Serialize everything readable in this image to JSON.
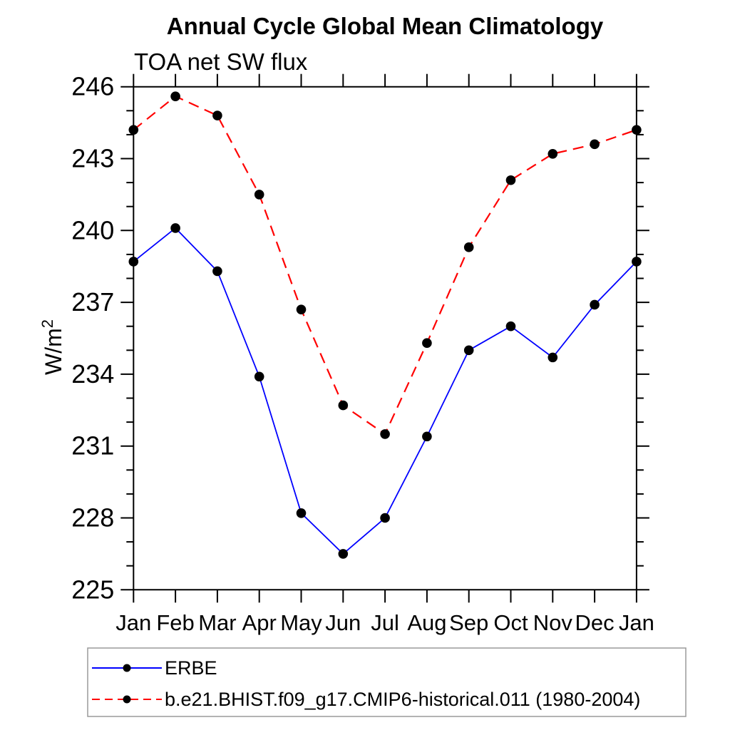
{
  "chart_data": {
    "type": "line",
    "title": "Annual Cycle Global Mean Climatology",
    "subtitle": "TOA net SW flux",
    "ylabel": "W/m^2",
    "ylabel_base": "W/m",
    "ylabel_sup": "2",
    "categories": [
      "Jan",
      "Feb",
      "Mar",
      "Apr",
      "May",
      "Jun",
      "Jul",
      "Aug",
      "Sep",
      "Oct",
      "Nov",
      "Dec",
      "Jan"
    ],
    "series": [
      {
        "name": "ERBE",
        "color": "#0000ff",
        "line_style": "solid",
        "marker": "filled-circle",
        "marker_color": "#000000",
        "values": [
          238.7,
          240.1,
          238.3,
          233.9,
          228.2,
          226.5,
          228.0,
          231.4,
          235.0,
          236.0,
          234.7,
          236.9,
          238.7
        ]
      },
      {
        "name": "b.e21.BHIST.f09_g17.CMIP6-historical.011 (1980-2004)",
        "color": "#ff0000",
        "line_style": "dashed",
        "marker": "filled-circle",
        "marker_color": "#000000",
        "values": [
          244.2,
          245.6,
          244.8,
          241.5,
          236.7,
          232.7,
          231.5,
          235.3,
          239.3,
          242.1,
          243.2,
          243.6,
          244.2
        ]
      }
    ],
    "ylim": [
      225,
      246
    ],
    "ytick_major": [
      225,
      228,
      231,
      234,
      237,
      240,
      243,
      246
    ],
    "ytick_minor_step": 1,
    "xtick_per_category": true,
    "grid": false,
    "axis_color": "#000000",
    "legend_position": "below-plot-left"
  }
}
